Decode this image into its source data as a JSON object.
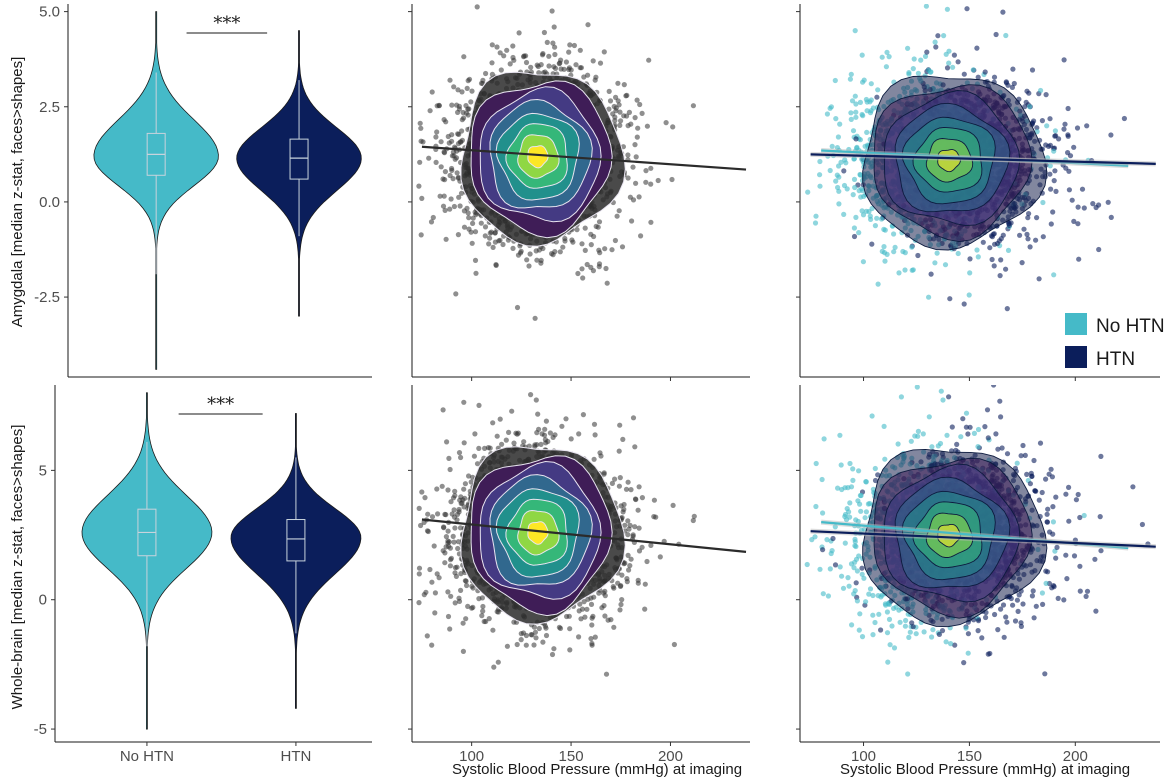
{
  "palette": {
    "no_htn": "#45BAC8",
    "htn": "#0B1E5B",
    "points_all": "#333333",
    "viridis": [
      "#3F1D57",
      "#443A83",
      "#31688E",
      "#21908C",
      "#35B779",
      "#8FD744",
      "#FDE725"
    ]
  },
  "legend": {
    "placement": "bottom-right of top-right panel",
    "items": [
      {
        "label": "No HTN",
        "color": "#45BAC8"
      },
      {
        "label": "HTN",
        "color": "#0B1E5B"
      }
    ]
  },
  "chart_data": [
    {
      "panel": "top-left",
      "type": "violin",
      "ylabel": "Amygdala [median z-stat, faces>shapes]",
      "categories": [
        "No HTN",
        "HTN"
      ],
      "show_category_labels": false,
      "ylim": [
        -4.6,
        5.2
      ],
      "yticks": [
        "5.0",
        "2.5",
        "0.0",
        "-2.5"
      ],
      "ytick_values": [
        5.0,
        2.5,
        0.0,
        -2.5
      ],
      "significance": "***",
      "groups": [
        {
          "name": "No HTN",
          "min": -4.4,
          "q1": 0.7,
          "median": 1.25,
          "q3": 1.8,
          "whisker_low": -1.9,
          "whisker_high": 3.4,
          "max": 5.0,
          "peak": 1.2
        },
        {
          "name": "HTN",
          "min": -3.0,
          "q1": 0.6,
          "median": 1.15,
          "q3": 1.65,
          "whisker_low": -0.9,
          "whisker_high": 3.2,
          "max": 4.5,
          "peak": 1.15
        }
      ]
    },
    {
      "panel": "top-middle",
      "type": "scatter",
      "xlim": [
        70,
        240
      ],
      "ylim": [
        -4.6,
        5.2
      ],
      "xticks_shown": false,
      "density": "viridis contours",
      "center": {
        "x": 133,
        "y": 1.2
      },
      "spread": {
        "x": 19,
        "y": 1.0
      },
      "fit": {
        "x": [
          75,
          238
        ],
        "y": [
          1.45,
          0.85
        ]
      }
    },
    {
      "panel": "top-right",
      "type": "scatter",
      "xlim": [
        70,
        240
      ],
      "ylim": [
        -4.6,
        5.2
      ],
      "xticks_shown": false,
      "center": {
        "x": 140,
        "y": 1.1
      },
      "spread": {
        "x": 20,
        "y": 1.0
      },
      "fits": [
        {
          "group": "No HTN",
          "x": [
            80,
            225
          ],
          "y": [
            1.35,
            0.95
          ]
        },
        {
          "group": "HTN",
          "x": [
            75,
            238
          ],
          "y": [
            1.25,
            1.0
          ]
        }
      ]
    },
    {
      "panel": "bottom-left",
      "type": "violin",
      "ylabel": "Whole-brain [median z-stat, faces>shapes]",
      "categories": [
        "No HTN",
        "HTN"
      ],
      "show_category_labels": true,
      "ylim": [
        -5.5,
        8.3
      ],
      "yticks": [
        "5",
        "0",
        "-5"
      ],
      "ytick_values": [
        5,
        0,
        -5
      ],
      "significance": "***",
      "groups": [
        {
          "name": "No HTN",
          "min": -5.0,
          "q1": 1.7,
          "median": 2.6,
          "q3": 3.5,
          "whisker_low": -1.8,
          "whisker_high": 6.1,
          "max": 8.0,
          "peak": 2.6
        },
        {
          "name": "HTN",
          "min": -4.2,
          "q1": 1.5,
          "median": 2.35,
          "q3": 3.1,
          "whisker_low": -1.3,
          "whisker_high": 5.5,
          "max": 7.2,
          "peak": 2.4
        }
      ]
    },
    {
      "panel": "bottom-middle",
      "type": "scatter",
      "xlabel": "Systolic Blood Pressure (mmHg) at imaging",
      "xlim": [
        70,
        240
      ],
      "ylim": [
        -5.5,
        8.3
      ],
      "xticks": [
        "100",
        "150",
        "200"
      ],
      "xtick_values": [
        100,
        150,
        200
      ],
      "center": {
        "x": 133,
        "y": 2.6
      },
      "spread": {
        "x": 19,
        "y": 1.5
      },
      "fit": {
        "x": [
          75,
          238
        ],
        "y": [
          3.1,
          1.85
        ]
      }
    },
    {
      "panel": "bottom-right",
      "type": "scatter",
      "xlabel": "Systolic Blood Pressure (mmHg) at imaging",
      "xlim": [
        70,
        240
      ],
      "ylim": [
        -5.5,
        8.3
      ],
      "xticks": [
        "100",
        "150",
        "200"
      ],
      "xtick_values": [
        100,
        150,
        200
      ],
      "center": {
        "x": 140,
        "y": 2.5
      },
      "spread": {
        "x": 20,
        "y": 1.5
      },
      "fits": [
        {
          "group": "No HTN",
          "x": [
            80,
            225
          ],
          "y": [
            3.0,
            2.0
          ]
        },
        {
          "group": "HTN",
          "x": [
            75,
            238
          ],
          "y": [
            2.65,
            2.05
          ]
        }
      ]
    }
  ]
}
